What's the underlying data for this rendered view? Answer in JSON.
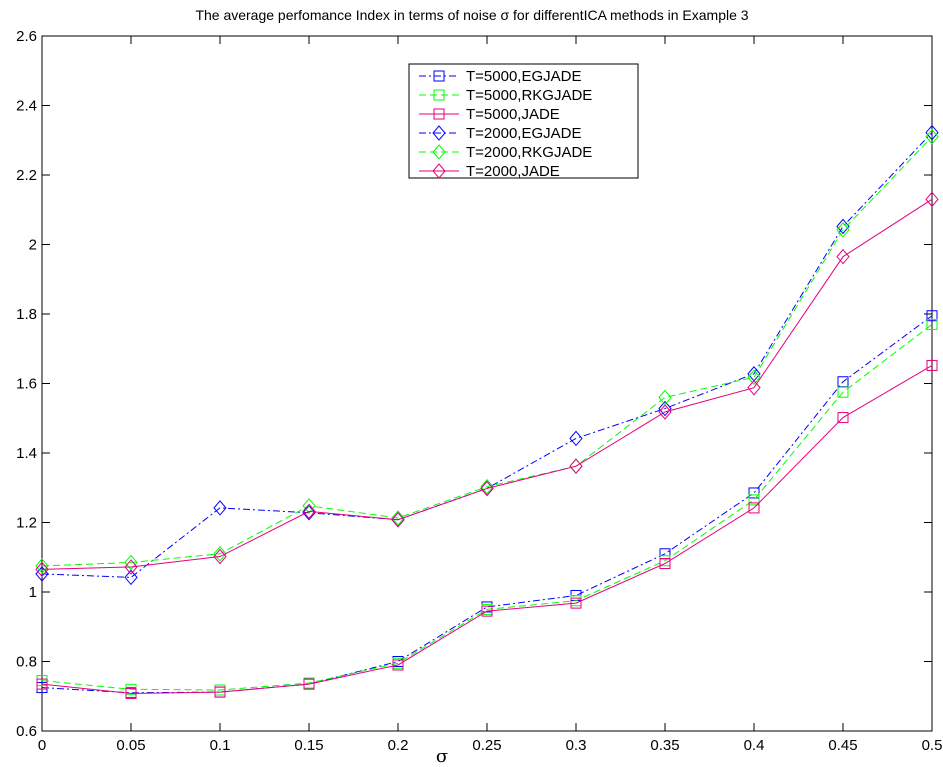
{
  "chart_data": {
    "type": "line",
    "title": "The average perfomance Index in terms of noise σ for differentICA methods in Example 3",
    "xlabel": "σ",
    "ylabel": "",
    "xlim": [
      0,
      0.5
    ],
    "ylim": [
      0.6,
      2.6
    ],
    "x": [
      0,
      0.05,
      0.1,
      0.15,
      0.2,
      0.25,
      0.3,
      0.35,
      0.4,
      0.45,
      0.5
    ],
    "x_tick_labels": [
      "0",
      "0.05",
      "0.1",
      "0.15",
      "0.2",
      "0.25",
      "0.3",
      "0.35",
      "0.4",
      "0.45",
      "0.5"
    ],
    "y_tick_labels": [
      "0.6",
      "0.8",
      "1",
      "1.2",
      "1.4",
      "1.6",
      "1.8",
      "2",
      "2.2",
      "2.4",
      "2.6"
    ],
    "grid": false,
    "legend_position": "top-center",
    "series": [
      {
        "name": "T=5000,EGJADE",
        "color": "#0000ff",
        "dash": "dashdot",
        "marker": "square",
        "values": [
          0.725,
          0.71,
          0.712,
          0.735,
          0.8,
          0.957,
          0.99,
          1.11,
          1.285,
          1.605,
          1.795
        ]
      },
      {
        "name": "T=5000,RKGJADE",
        "color": "#00ff00",
        "dash": "dashed",
        "marker": "square",
        "values": [
          0.745,
          0.72,
          0.718,
          0.738,
          0.795,
          0.95,
          0.975,
          1.09,
          1.265,
          1.575,
          1.77
        ]
      },
      {
        "name": "T=5000,JADE",
        "color": "#e6007e",
        "dash": "solid",
        "marker": "square",
        "values": [
          0.735,
          0.708,
          0.712,
          0.735,
          0.79,
          0.945,
          0.968,
          1.082,
          1.242,
          1.502,
          1.652
        ]
      },
      {
        "name": "T=2000,EGJADE",
        "color": "#0000ff",
        "dash": "dashdot",
        "marker": "diamond",
        "values": [
          1.052,
          1.042,
          1.242,
          1.228,
          1.208,
          1.298,
          1.442,
          1.528,
          1.628,
          2.052,
          2.322
        ]
      },
      {
        "name": "T=2000,RKGJADE",
        "color": "#00ff00",
        "dash": "dashed",
        "marker": "diamond",
        "values": [
          1.075,
          1.085,
          1.11,
          1.248,
          1.213,
          1.303,
          1.362,
          1.56,
          1.618,
          2.042,
          2.31
        ]
      },
      {
        "name": "T=2000,JADE",
        "color": "#e6007e",
        "dash": "solid",
        "marker": "diamond",
        "values": [
          1.065,
          1.072,
          1.102,
          1.232,
          1.208,
          1.298,
          1.362,
          1.518,
          1.588,
          1.965,
          2.13
        ]
      }
    ]
  }
}
